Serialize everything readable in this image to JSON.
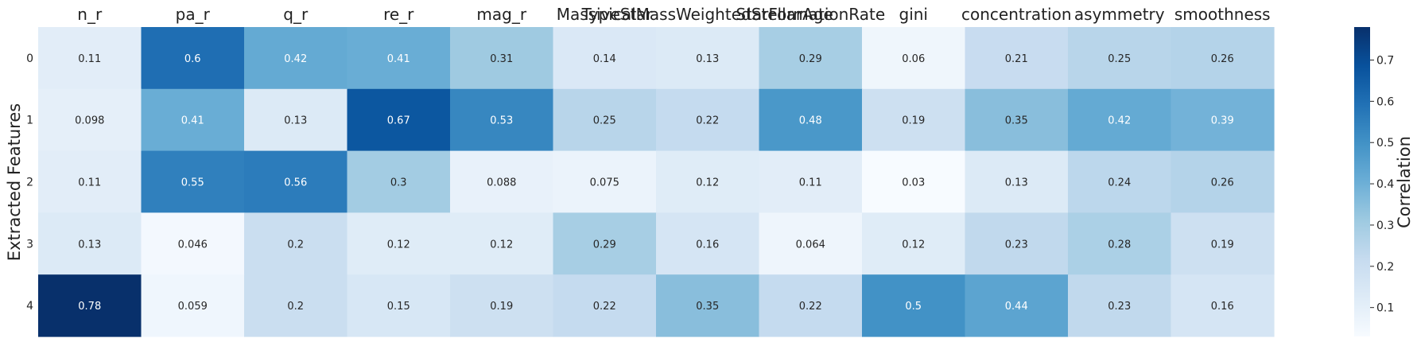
{
  "chart_data": {
    "type": "heatmap",
    "columns": [
      "n_r",
      "pa_r",
      "q_r",
      "re_r",
      "mag_r",
      "MassiveStar",
      "TypicalMassWeightedStellarAge",
      "StarFormationRate",
      "gini",
      "concentration",
      "asymmetry",
      "smoothness"
    ],
    "rows": [
      "0",
      "1",
      "2",
      "3",
      "4"
    ],
    "ylabel": "Extracted Features",
    "colorbar_label": "Correlation",
    "colormap": "Blues",
    "vmin": 0.03,
    "vmax": 0.78,
    "colorbar_ticks": [
      0.1,
      0.2,
      0.3,
      0.4,
      0.5,
      0.6,
      0.7
    ],
    "values": [
      [
        0.11,
        0.6,
        0.42,
        0.41,
        0.31,
        0.14,
        0.13,
        0.29,
        0.06,
        0.21,
        0.25,
        0.26
      ],
      [
        0.098,
        0.41,
        0.13,
        0.67,
        0.53,
        0.25,
        0.22,
        0.48,
        0.19,
        0.35,
        0.42,
        0.39
      ],
      [
        0.11,
        0.55,
        0.56,
        0.3,
        0.088,
        0.075,
        0.12,
        0.11,
        0.03,
        0.13,
        0.24,
        0.26
      ],
      [
        0.13,
        0.046,
        0.2,
        0.12,
        0.12,
        0.29,
        0.16,
        0.064,
        0.12,
        0.23,
        0.28,
        0.19
      ],
      [
        0.78,
        0.059,
        0.2,
        0.15,
        0.19,
        0.22,
        0.35,
        0.22,
        0.5,
        0.44,
        0.23,
        0.16
      ]
    ],
    "colors": {
      "low": "#f7fbff",
      "high": "#08306b",
      "text_dark": "#262626",
      "text_light": "#ffffff"
    }
  }
}
